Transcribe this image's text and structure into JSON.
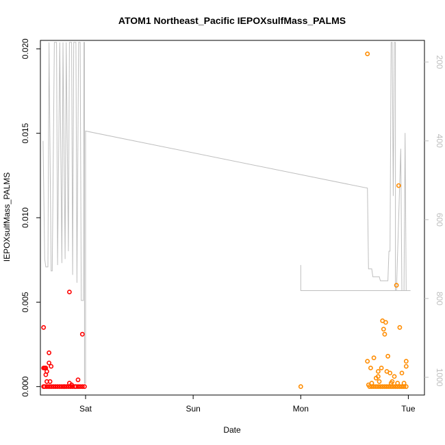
{
  "chart_data": {
    "type": "scatter",
    "title": "ATOM1 Northeast_Pacific IEPOXsulfMass_PALMS",
    "xlabel": "Date",
    "ylabel": "IEPOXsulfMass_PALMS",
    "x_unit": "days since Saturday 00:00",
    "xlim": [
      -0.42,
      3.15
    ],
    "ylim": [
      -0.0005,
      0.0205
    ],
    "x_ticks": [
      {
        "value": 0,
        "label": "Sat"
      },
      {
        "value": 1,
        "label": "Sun"
      },
      {
        "value": 2,
        "label": "Mon"
      },
      {
        "value": 3,
        "label": "Tue"
      }
    ],
    "y_ticks": [
      {
        "value": 0.0,
        "label": "0.000"
      },
      {
        "value": 0.005,
        "label": "0.005"
      },
      {
        "value": 0.01,
        "label": "0.010"
      },
      {
        "value": 0.015,
        "label": "0.015"
      },
      {
        "value": 0.02,
        "label": "0.020"
      }
    ],
    "right_axis": {
      "lim": [
        1045,
        145
      ],
      "ticks": [
        {
          "value": 200,
          "label": "200"
        },
        {
          "value": 400,
          "label": "400"
        },
        {
          "value": 600,
          "label": "600"
        },
        {
          "value": 800,
          "label": "800"
        },
        {
          "value": 1000,
          "label": "1000"
        }
      ],
      "color": "#bebebe"
    },
    "grid": false,
    "series": [
      {
        "color": "#ff0000",
        "marker": "open-circle",
        "points": [
          [
            -0.39,
            0.0035
          ],
          [
            -0.39,
            0.0011
          ],
          [
            -0.38,
            0.0011
          ],
          [
            -0.37,
            0.0011
          ],
          [
            -0.37,
            0.0007
          ],
          [
            -0.36,
            0.0009
          ],
          [
            -0.36,
            0.0003
          ],
          [
            -0.34,
            0.002
          ],
          [
            -0.34,
            0.0014
          ],
          [
            -0.33,
            0.0003
          ],
          [
            -0.32,
            0.0012
          ],
          [
            -0.3,
            0.0
          ],
          [
            -0.15,
            0.0056
          ],
          [
            -0.15,
            0.0002
          ],
          [
            -0.07,
            0.0004
          ],
          [
            -0.03,
            0.0031
          ],
          [
            -0.39,
            0.0
          ],
          [
            -0.38,
            0.0
          ],
          [
            -0.36,
            0.0
          ],
          [
            -0.34,
            0.0
          ],
          [
            -0.32,
            0.0
          ],
          [
            -0.28,
            0.0
          ],
          [
            -0.26,
            0.0
          ],
          [
            -0.24,
            0.0
          ],
          [
            -0.22,
            0.0
          ],
          [
            -0.2,
            0.0
          ],
          [
            -0.18,
            0.0
          ],
          [
            -0.16,
            0.0
          ],
          [
            -0.14,
            0.0
          ],
          [
            -0.12,
            0.0
          ],
          [
            -0.1,
            0.0
          ],
          [
            -0.09,
            0.0
          ],
          [
            -0.07,
            0.0
          ],
          [
            -0.05,
            0.0
          ],
          [
            -0.03,
            0.0
          ],
          [
            -0.01,
            0.0
          ],
          [
            -0.13,
            0.0001
          ],
          [
            -0.2,
            0.0
          ]
        ]
      },
      {
        "color": "#ff8c00",
        "marker": "open-circle",
        "points": [
          [
            2.0,
            0.0
          ],
          [
            2.62,
            0.0197
          ],
          [
            2.62,
            0.0015
          ],
          [
            2.63,
            0.0001
          ],
          [
            2.65,
            0.0011
          ],
          [
            2.66,
            0.0002
          ],
          [
            2.68,
            0.0017
          ],
          [
            2.7,
            0.0005
          ],
          [
            2.72,
            0.0009
          ],
          [
            2.72,
            0.0006
          ],
          [
            2.75,
            0.0011
          ],
          [
            2.76,
            0.0039
          ],
          [
            2.77,
            0.0034
          ],
          [
            2.78,
            0.0031
          ],
          [
            2.79,
            0.0038
          ],
          [
            2.8,
            0.0009
          ],
          [
            2.81,
            0.0018
          ],
          [
            2.83,
            0.0008
          ],
          [
            2.85,
            0.0003
          ],
          [
            2.87,
            0.0006
          ],
          [
            2.89,
            0.006
          ],
          [
            2.91,
            0.0119
          ],
          [
            2.92,
            0.0035
          ],
          [
            2.94,
            0.0008
          ],
          [
            2.98,
            0.0015
          ],
          [
            2.98,
            0.0012
          ],
          [
            2.96,
            0.0002
          ],
          [
            2.9,
            0.0002
          ],
          [
            2.64,
            0.0
          ],
          [
            2.66,
            0.0
          ],
          [
            2.68,
            0.0
          ],
          [
            2.7,
            0.0
          ],
          [
            2.72,
            0.0
          ],
          [
            2.74,
            0.0
          ],
          [
            2.76,
            0.0
          ],
          [
            2.78,
            0.0
          ],
          [
            2.8,
            0.0
          ],
          [
            2.82,
            0.0
          ],
          [
            2.84,
            0.0
          ],
          [
            2.86,
            0.0
          ],
          [
            2.88,
            0.0
          ],
          [
            2.9,
            0.0
          ],
          [
            2.92,
            0.0
          ],
          [
            2.94,
            0.0
          ],
          [
            2.96,
            0.0
          ],
          [
            2.98,
            0.0
          ],
          [
            2.73,
            0.0003
          ],
          [
            2.84,
            0.0002
          ]
        ]
      }
    ],
    "line_series": [
      {
        "color": "#bebebe",
        "axis": "right",
        "segments": [
          [
            [
              -0.395,
              400
            ],
            [
              -0.38,
              700
            ],
            [
              -0.37,
              720
            ],
            [
              -0.35,
              720
            ],
            [
              -0.34,
              150
            ],
            [
              -0.32,
              730
            ],
            [
              -0.31,
              730
            ],
            [
              -0.29,
              150
            ],
            [
              -0.27,
              150
            ],
            [
              -0.26,
              715
            ],
            [
              -0.24,
              150
            ],
            [
              -0.22,
              710
            ],
            [
              -0.21,
              150
            ],
            [
              -0.19,
              700
            ],
            [
              -0.18,
              150
            ],
            [
              -0.16,
              680
            ],
            [
              -0.15,
              150
            ],
            [
              -0.13,
              150
            ],
            [
              -0.12,
              740
            ],
            [
              -0.11,
              150
            ],
            [
              -0.09,
              150
            ],
            [
              -0.08,
              760
            ],
            [
              -0.065,
              150
            ],
            [
              -0.05,
              150
            ],
            [
              -0.04,
              805
            ],
            [
              -0.02,
              805
            ],
            [
              -0.015,
              150
            ],
            [
              -0.01,
              150
            ],
            [
              -0.01,
              1015
            ],
            [
              0.0,
              1015
            ],
            [
              0.0,
              375
            ],
            [
              2.62,
              520
            ],
            [
              2.63,
              725
            ],
            [
              2.66,
              725
            ],
            [
              2.67,
              745
            ],
            [
              2.73,
              745
            ],
            [
              2.74,
              755
            ],
            [
              2.81,
              755
            ],
            [
              2.82,
              680
            ],
            [
              2.83,
              680
            ],
            [
              2.84,
              150
            ],
            [
              2.85,
              150
            ],
            [
              2.86,
              540
            ],
            [
              2.87,
              150
            ],
            [
              2.88,
              150
            ],
            [
              2.88,
              780
            ],
            [
              2.89,
              780
            ],
            [
              2.93,
              420
            ],
            [
              2.94,
              780
            ],
            [
              2.96,
              780
            ],
            [
              2.97,
              380
            ],
            [
              2.98,
              780
            ],
            [
              3.02,
              780
            ]
          ],
          [
            [
              2.0,
              715
            ],
            [
              2.0,
              780
            ],
            [
              3.0,
              780
            ]
          ]
        ]
      }
    ]
  }
}
